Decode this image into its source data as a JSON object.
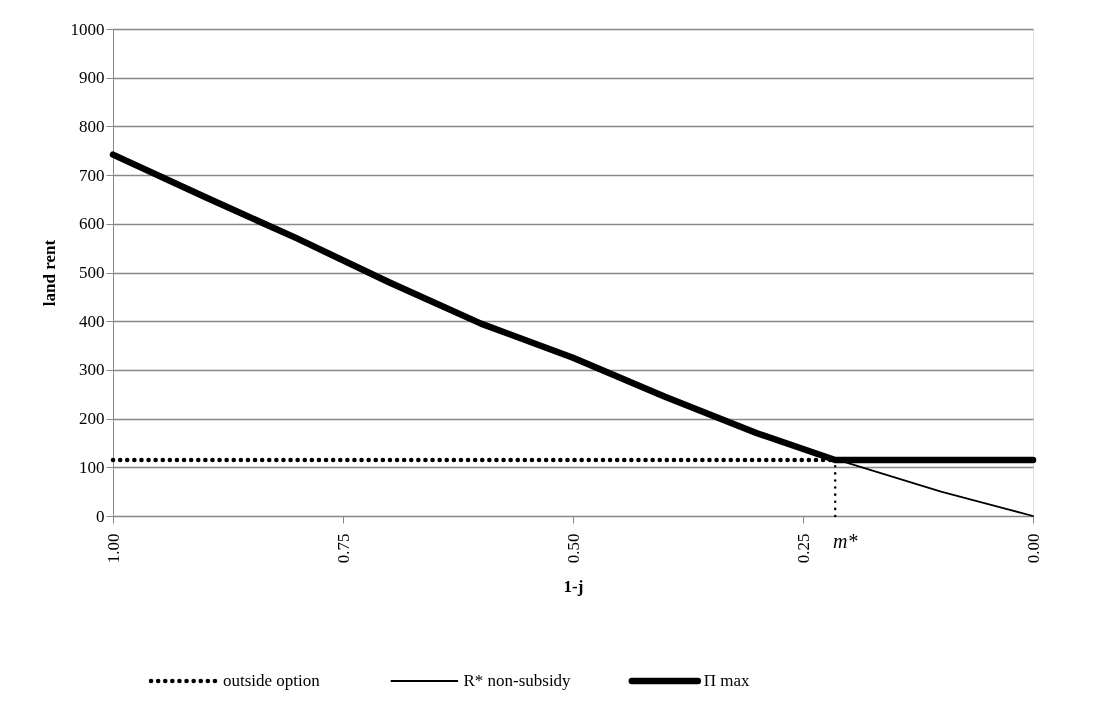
{
  "chart_data": {
    "type": "line",
    "xlabel": "1-j",
    "ylabel": "land rent",
    "series": [
      {
        "name": "outside option",
        "color": "#000000",
        "line_style": "dotted",
        "x": [
          1.0,
          0.215
        ],
        "values": [
          115,
          115
        ]
      },
      {
        "name": "R* non-subsidy",
        "color": "#000000",
        "line_style": "solid",
        "x": [
          1.0,
          0.9,
          0.8,
          0.7,
          0.6,
          0.5,
          0.4,
          0.3,
          0.2,
          0.1,
          0.0
        ],
        "values": [
          742,
          655,
          570,
          480,
          395,
          325,
          245,
          170,
          108,
          50,
          0
        ]
      },
      {
        "name": "Π max",
        "color": "#000000",
        "line_style": "solid",
        "x": [
          1.0,
          0.9,
          0.8,
          0.7,
          0.6,
          0.5,
          0.4,
          0.3,
          0.215,
          0.0
        ],
        "values": [
          742,
          655,
          570,
          480,
          395,
          325,
          245,
          170,
          115,
          115
        ]
      },
      {
        "color": "#000000",
        "line_style": "dotted",
        "x": [
          0.215,
          0.215
        ],
        "values": [
          0,
          115
        ]
      }
    ],
    "annotations": [
      {
        "text": "m*",
        "x": 0.215,
        "y": 0
      }
    ],
    "xlim": [
      1.0,
      0.0
    ],
    "xticks": [
      {
        "value": 1.0,
        "label": "1.00"
      },
      {
        "value": 0.75,
        "label": "0.75"
      },
      {
        "value": 0.5,
        "label": "0.50"
      },
      {
        "value": 0.25,
        "label": "0.25"
      },
      {
        "value": 0.0,
        "label": "0.00"
      }
    ],
    "ylim": [
      0,
      1000
    ],
    "yticks": [
      0,
      100,
      200,
      300,
      400,
      500,
      600,
      700,
      800,
      900,
      1000
    ],
    "grid": "y",
    "legend": "bottom"
  }
}
